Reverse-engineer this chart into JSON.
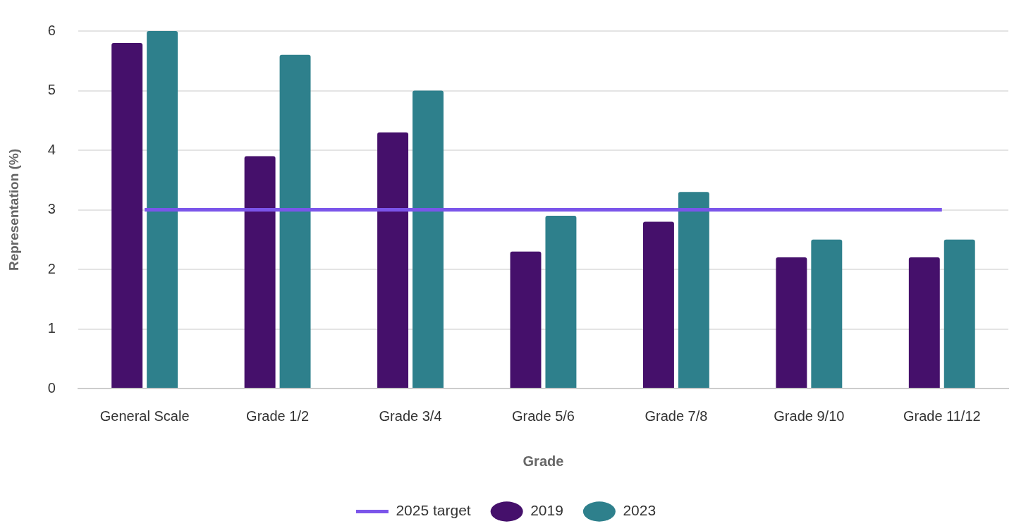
{
  "chart_data": {
    "type": "bar",
    "xlabel": "Grade",
    "ylabel": "Representation (%)",
    "categories": [
      "General Scale",
      "Grade 1/2",
      "Grade 3/4",
      "Grade 5/6",
      "Grade 7/8",
      "Grade 9/10",
      "Grade 11/12"
    ],
    "series": [
      {
        "name": "2019",
        "color": "#45106b",
        "values": [
          5.8,
          3.9,
          4.3,
          2.3,
          2.8,
          2.2,
          2.2
        ]
      },
      {
        "name": "2023",
        "color": "#2e808c",
        "values": [
          6.0,
          5.6,
          5.0,
          2.9,
          3.3,
          2.5,
          2.5
        ]
      },
      {
        "name": "2025 target",
        "type": "line",
        "color": "#7b55ea",
        "values": [
          3,
          3,
          3,
          3,
          3,
          3,
          3
        ]
      }
    ],
    "ylim": [
      0,
      6
    ],
    "yticks": [
      0,
      1,
      2,
      3,
      4,
      5,
      6
    ],
    "grid": "y",
    "legend": "bottom",
    "marker": "none",
    "line_style": "solid"
  }
}
